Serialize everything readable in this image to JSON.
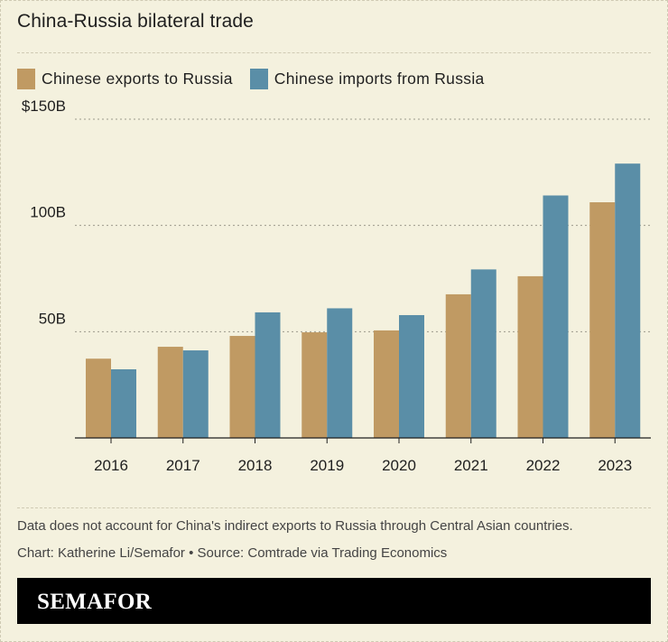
{
  "header": {
    "title": "China-Russia bilateral trade"
  },
  "legend": [
    {
      "label": "Chinese exports to Russia",
      "color": "#c09a63"
    },
    {
      "label": "Chinese imports from Russia",
      "color": "#5a8ea7"
    }
  ],
  "chart_data": {
    "type": "bar",
    "categories": [
      "2016",
      "2017",
      "2018",
      "2019",
      "2020",
      "2021",
      "2022",
      "2023"
    ],
    "series": [
      {
        "name": "Chinese exports to Russia",
        "color": "#c09a63",
        "values": [
          37.3,
          42.9,
          48.0,
          49.7,
          50.6,
          67.6,
          76.1,
          110.9
        ]
      },
      {
        "name": "Chinese imports from Russia",
        "color": "#5a8ea7",
        "values": [
          32.3,
          41.2,
          59.1,
          61.0,
          57.8,
          79.3,
          114.1,
          129.1
        ]
      }
    ],
    "ylim": [
      0,
      150
    ],
    "yticks": [
      {
        "value": 50,
        "label": "50B"
      },
      {
        "value": 100,
        "label": "100B"
      },
      {
        "value": 150,
        "label": "$150B"
      }
    ],
    "grid": true,
    "legend_position": "top-left"
  },
  "notes": {
    "disclaimer": "Data does not account for China's indirect exports to Russia through Central Asian countries.",
    "credit": "Chart: Katherine Li/Semafor • Source: Comtrade via Trading Economics"
  },
  "footer": {
    "logo": "SEMAFOR"
  }
}
